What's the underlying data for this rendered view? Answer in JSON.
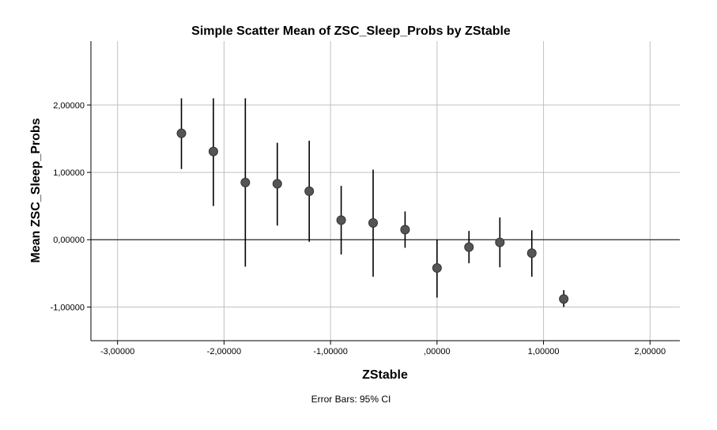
{
  "chart_data": {
    "type": "scatter",
    "title": "Simple Scatter Mean of ZSC_Sleep_Probs by ZStable",
    "xlabel": "ZStable",
    "ylabel": "Mean ZSC_Sleep_Probs",
    "footnote": "Error Bars: 95% CI",
    "xlim": [
      -3.25,
      2.28
    ],
    "ylim": [
      -1.5,
      2.95
    ],
    "x_ticks": [
      -3,
      -2,
      -1,
      0,
      1,
      2
    ],
    "x_tick_labels": [
      "-3,00000",
      "-2,00000",
      "-1,00000",
      ",00000",
      "1,00000",
      "2,00000"
    ],
    "y_ticks": [
      -1,
      0,
      1,
      2
    ],
    "y_tick_labels": [
      "-1,00000",
      "0,00000",
      "1,00000",
      "2,00000"
    ],
    "grid": true,
    "reference_line_y": 0,
    "points": [
      {
        "x": -2.4,
        "y": 1.58,
        "ci_low": 1.05,
        "ci_high": 2.1
      },
      {
        "x": -2.1,
        "y": 1.31,
        "ci_low": 0.5,
        "ci_high": 2.1
      },
      {
        "x": -1.8,
        "y": 0.85,
        "ci_low": -0.4,
        "ci_high": 2.1
      },
      {
        "x": -1.5,
        "y": 0.83,
        "ci_low": 0.21,
        "ci_high": 1.44
      },
      {
        "x": -1.2,
        "y": 0.72,
        "ci_low": -0.03,
        "ci_high": 1.47
      },
      {
        "x": -0.9,
        "y": 0.29,
        "ci_low": -0.22,
        "ci_high": 0.8
      },
      {
        "x": -0.6,
        "y": 0.25,
        "ci_low": -0.55,
        "ci_high": 1.04
      },
      {
        "x": -0.3,
        "y": 0.15,
        "ci_low": -0.12,
        "ci_high": 0.42
      },
      {
        "x": 0.0,
        "y": -0.42,
        "ci_low": -0.86,
        "ci_high": 0.0
      },
      {
        "x": 0.3,
        "y": -0.11,
        "ci_low": -0.35,
        "ci_high": 0.13
      },
      {
        "x": 0.59,
        "y": -0.04,
        "ci_low": -0.41,
        "ci_high": 0.33
      },
      {
        "x": 0.89,
        "y": -0.2,
        "ci_low": -0.55,
        "ci_high": 0.14
      },
      {
        "x": 1.19,
        "y": -0.88,
        "ci_low": -1.0,
        "ci_high": -0.75
      }
    ],
    "colors": {
      "marker": "#555555",
      "marker_edge": "#333333",
      "error_bar": "#000000",
      "grid": "#c0c0c0",
      "axis": "#000000"
    }
  }
}
